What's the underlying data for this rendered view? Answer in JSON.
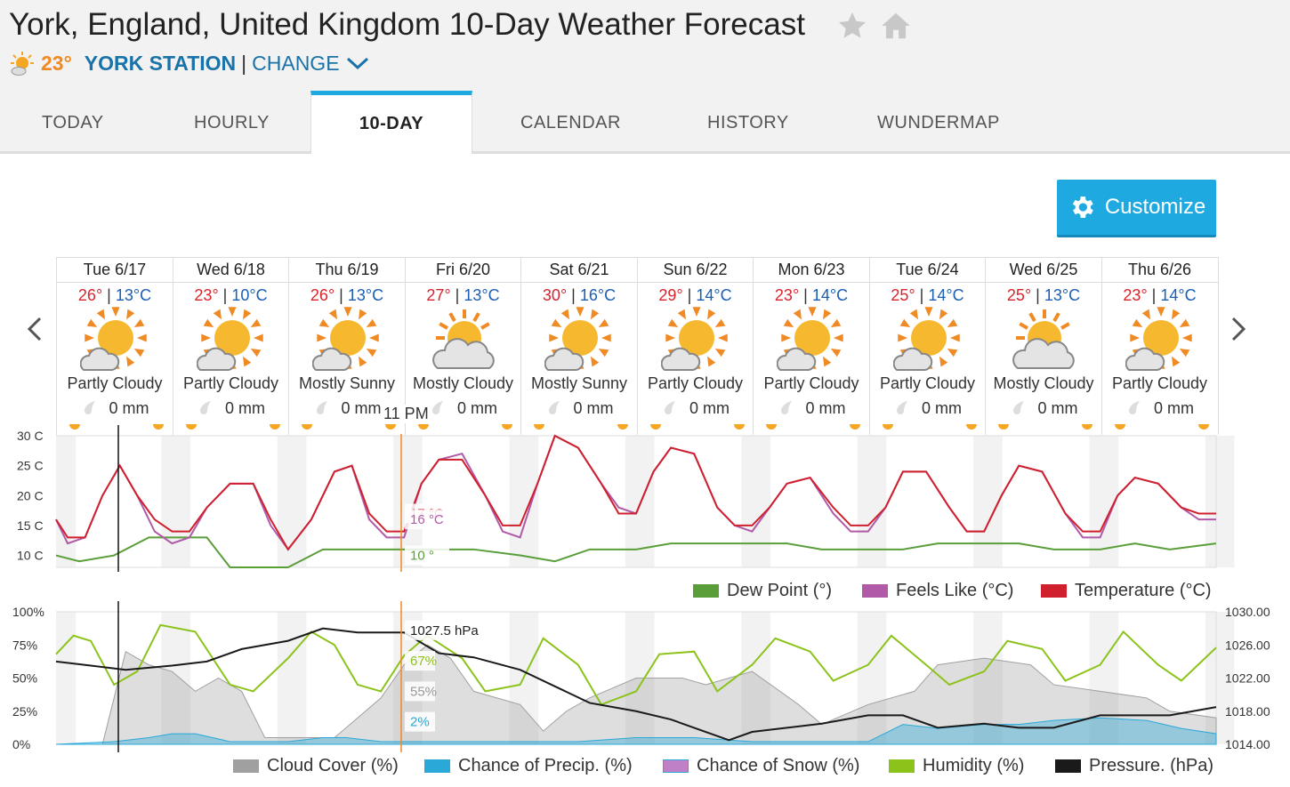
{
  "page": {
    "title": "York, England, United Kingdom 10-Day Weather Forecast",
    "current_temp": "23°",
    "station": "YORK STATION",
    "separator": "|",
    "change_label": "CHANGE"
  },
  "tabs": [
    {
      "label": "TODAY"
    },
    {
      "label": "HOURLY"
    },
    {
      "label": "10-DAY"
    },
    {
      "label": "CALENDAR"
    },
    {
      "label": "HISTORY"
    },
    {
      "label": "WUNDERMAP"
    }
  ],
  "customize_label": "Customize",
  "days": [
    {
      "date": "Tue 6/17",
      "hi": "26°",
      "lo": "13°C",
      "cond": "Partly Cloudy",
      "precip": "0 mm",
      "icon": "partly-cloudy-icon"
    },
    {
      "date": "Wed 6/18",
      "hi": "23°",
      "lo": "10°C",
      "cond": "Partly Cloudy",
      "precip": "0 mm",
      "icon": "partly-cloudy-icon"
    },
    {
      "date": "Thu 6/19",
      "hi": "26°",
      "lo": "13°C",
      "cond": "Mostly Sunny",
      "precip": "0 mm",
      "icon": "mostly-sunny-icon"
    },
    {
      "date": "Fri 6/20",
      "hi": "27°",
      "lo": "13°C",
      "cond": "Mostly Cloudy",
      "precip": "0 mm",
      "icon": "mostly-cloudy-icon"
    },
    {
      "date": "Sat 6/21",
      "hi": "30°",
      "lo": "16°C",
      "cond": "Mostly Sunny",
      "precip": "0 mm",
      "icon": "mostly-sunny-icon"
    },
    {
      "date": "Sun 6/22",
      "hi": "29°",
      "lo": "14°C",
      "cond": "Partly Cloudy",
      "precip": "0 mm",
      "icon": "partly-cloudy-icon"
    },
    {
      "date": "Mon 6/23",
      "hi": "23°",
      "lo": "14°C",
      "cond": "Partly Cloudy",
      "precip": "0 mm",
      "icon": "partly-cloudy-icon"
    },
    {
      "date": "Tue 6/24",
      "hi": "25°",
      "lo": "14°C",
      "cond": "Partly Cloudy",
      "precip": "0 mm",
      "icon": "partly-cloudy-icon"
    },
    {
      "date": "Wed 6/25",
      "hi": "25°",
      "lo": "13°C",
      "cond": "Mostly Cloudy",
      "precip": "0 mm",
      "icon": "mostly-cloudy-icon"
    },
    {
      "date": "Thu 6/26",
      "hi": "23°",
      "lo": "14°C",
      "cond": "Partly Cloudy",
      "precip": "0 mm",
      "icon": "partly-cloudy-icon"
    }
  ],
  "hover_time": "11 PM",
  "colors": {
    "temperature": "#d0202e",
    "feels_like": "#b05aa8",
    "dew_point": "#5a9e3a",
    "cloud_cover": "#a0a0a0",
    "precip": "#2aa8d8",
    "snow": "#c080c8",
    "humidity": "#8cc31b",
    "pressure": "#1a1a1a",
    "accent": "#1fa9e1"
  },
  "chart_data": [
    {
      "type": "line",
      "ylim": [
        8,
        30
      ],
      "ytick_labels": [
        "30 C",
        "25 C",
        "20 C",
        "15 C",
        "10 C"
      ],
      "yticks": [
        30,
        25,
        20,
        15,
        10
      ],
      "x_days": 10,
      "legend_position": "bottom-right",
      "tooltip": {
        "temperature": "17 °C",
        "feels_like": "16 °C",
        "dew_point": "10 °"
      },
      "series": [
        {
          "name": "Dew Point (°)",
          "key": "dew_point",
          "x": [
            0,
            0.2,
            0.5,
            0.8,
            1,
            1.3,
            1.5,
            1.8,
            2,
            2.3,
            2.6,
            3,
            3.3,
            3.6,
            4,
            4.3,
            4.6,
            5,
            5.3,
            5.6,
            6,
            6.3,
            6.6,
            7,
            7.3,
            7.6,
            8,
            8.3,
            8.6,
            9,
            9.3,
            9.6,
            10
          ],
          "values": [
            10,
            9,
            10,
            13,
            13,
            13,
            8,
            8,
            8,
            11,
            11,
            11,
            11,
            11,
            10,
            9,
            11,
            11,
            12,
            12,
            12,
            12,
            11,
            11,
            11,
            12,
            12,
            12,
            11,
            11,
            12,
            11,
            12
          ]
        },
        {
          "name": "Feels Like (°C)",
          "key": "feels_like",
          "x": [
            0,
            0.1,
            0.25,
            0.4,
            0.55,
            0.7,
            0.85,
            1,
            1.15,
            1.3,
            1.5,
            1.7,
            1.85,
            2,
            2.2,
            2.4,
            2.55,
            2.7,
            2.85,
            3,
            3.15,
            3.3,
            3.5,
            3.7,
            3.85,
            4,
            4.15,
            4.3,
            4.5,
            4.7,
            4.85,
            5,
            5.15,
            5.3,
            5.5,
            5.7,
            5.85,
            6,
            6.15,
            6.3,
            6.5,
            6.7,
            6.85,
            7,
            7.15,
            7.3,
            7.5,
            7.7,
            7.85,
            8,
            8.15,
            8.3,
            8.5,
            8.7,
            8.85,
            9,
            9.15,
            9.3,
            9.5,
            9.7,
            9.85,
            10
          ],
          "values": [
            16,
            12,
            13,
            20,
            25,
            20,
            14,
            12,
            13,
            18,
            22,
            22,
            15,
            11,
            16,
            24,
            25,
            16,
            13,
            13,
            22,
            26,
            27,
            20,
            14,
            13,
            22,
            30,
            28,
            22,
            18,
            17,
            24,
            28,
            27,
            18,
            15,
            14,
            18,
            22,
            23,
            17,
            14,
            14,
            18,
            24,
            24,
            18,
            14,
            14,
            20,
            25,
            24,
            17,
            13,
            13,
            20,
            23,
            22,
            18,
            16,
            16
          ]
        },
        {
          "name": "Temperature (°C)",
          "key": "temperature",
          "x": [
            0,
            0.1,
            0.25,
            0.4,
            0.55,
            0.7,
            0.85,
            1,
            1.15,
            1.3,
            1.5,
            1.7,
            1.85,
            2,
            2.2,
            2.4,
            2.55,
            2.7,
            2.85,
            3,
            3.15,
            3.3,
            3.5,
            3.7,
            3.85,
            4,
            4.15,
            4.3,
            4.5,
            4.7,
            4.85,
            5,
            5.15,
            5.3,
            5.5,
            5.7,
            5.85,
            6,
            6.15,
            6.3,
            6.5,
            6.7,
            6.85,
            7,
            7.15,
            7.3,
            7.5,
            7.7,
            7.85,
            8,
            8.15,
            8.3,
            8.5,
            8.7,
            8.85,
            9,
            9.15,
            9.3,
            9.5,
            9.7,
            9.85,
            10
          ],
          "values": [
            16,
            13,
            13,
            20,
            25,
            20,
            16,
            14,
            14,
            18,
            22,
            22,
            16,
            11,
            16,
            24,
            25,
            17,
            14,
            14,
            22,
            26,
            26,
            20,
            15,
            15,
            22,
            30,
            28,
            22,
            17,
            17,
            24,
            28,
            27,
            18,
            15,
            15,
            18,
            22,
            23,
            18,
            15,
            15,
            18,
            24,
            24,
            18,
            14,
            14,
            20,
            25,
            24,
            17,
            14,
            14,
            20,
            23,
            22,
            18,
            17,
            17
          ]
        }
      ]
    },
    {
      "type": "area",
      "ylim": [
        0,
        100
      ],
      "ytick_labels": [
        "100%",
        "75%",
        "50%",
        "25%",
        "0%"
      ],
      "yticks": [
        100,
        75,
        50,
        25,
        0
      ],
      "y2lim": [
        1014,
        1030
      ],
      "y2tick_labels": [
        "1030.00",
        "1026.00",
        "1022.00",
        "1018.00",
        "1014.00"
      ],
      "y2ticks": [
        1030,
        1026,
        1022,
        1018,
        1014
      ],
      "legend_position": "bottom",
      "tooltip": {
        "pressure": "1027.5 hPa",
        "humidity": "67%",
        "cloud_cover": "55%",
        "precip": "2%"
      },
      "series": [
        {
          "name": "Cloud Cover (%)",
          "key": "cloud_cover",
          "x": [
            0,
            0.4,
            0.6,
            0.8,
            1,
            1.2,
            1.4,
            1.6,
            1.8,
            2,
            2.4,
            2.6,
            2.8,
            3,
            3.2,
            3.4,
            3.6,
            3.8,
            4,
            4.2,
            4.4,
            4.6,
            5,
            5.4,
            5.6,
            6,
            6.4,
            6.6,
            7,
            7.4,
            7.6,
            8,
            8.4,
            8.6,
            9,
            9.4,
            9.6,
            10
          ],
          "values": [
            0,
            0,
            70,
            60,
            55,
            40,
            50,
            40,
            5,
            5,
            5,
            20,
            35,
            60,
            75,
            65,
            40,
            35,
            30,
            10,
            25,
            35,
            50,
            50,
            45,
            55,
            30,
            15,
            30,
            40,
            60,
            65,
            60,
            45,
            40,
            35,
            25,
            20
          ]
        },
        {
          "name": "Chance of Precip. (%)",
          "key": "precip",
          "x": [
            0,
            0.5,
            0.8,
            1,
            1.2,
            1.5,
            2,
            2.3,
            2.5,
            2.8,
            3,
            3.5,
            4,
            4.5,
            5,
            5.5,
            6,
            6.5,
            7,
            7.3,
            7.6,
            8,
            8.3,
            8.6,
            9,
            9.4,
            9.7,
            10
          ],
          "values": [
            0,
            2,
            5,
            8,
            8,
            2,
            2,
            5,
            5,
            2,
            2,
            2,
            2,
            2,
            5,
            5,
            2,
            2,
            2,
            15,
            12,
            15,
            15,
            18,
            20,
            18,
            12,
            8
          ]
        },
        {
          "name": "Chance of Snow (%)",
          "key": "snow",
          "x": [
            0,
            10
          ],
          "values": [
            0,
            0
          ]
        },
        {
          "name": "Humidity (%)",
          "key": "humidity",
          "x": [
            0,
            0.15,
            0.3,
            0.5,
            0.7,
            0.9,
            1.2,
            1.5,
            1.7,
            2,
            2.2,
            2.4,
            2.6,
            2.8,
            3,
            3.2,
            3.5,
            3.7,
            4,
            4.2,
            4.5,
            4.7,
            5,
            5.2,
            5.5,
            5.7,
            6,
            6.2,
            6.5,
            6.7,
            7,
            7.2,
            7.5,
            7.7,
            8,
            8.2,
            8.5,
            8.7,
            9,
            9.2,
            9.5,
            9.7,
            10
          ],
          "values": [
            68,
            82,
            78,
            45,
            55,
            90,
            85,
            45,
            40,
            65,
            85,
            75,
            45,
            40,
            67,
            82,
            65,
            40,
            45,
            80,
            60,
            30,
            40,
            68,
            70,
            40,
            60,
            80,
            70,
            48,
            60,
            82,
            60,
            45,
            55,
            78,
            72,
            48,
            60,
            85,
            60,
            48,
            73
          ]
        },
        {
          "name": "Pressure. (hPa)",
          "key": "pressure",
          "x": [
            0,
            0.3,
            0.6,
            1,
            1.3,
            1.6,
            2,
            2.3,
            2.6,
            3,
            3.3,
            3.6,
            4,
            4.3,
            4.6,
            5,
            5.3,
            5.6,
            5.8,
            6,
            6.3,
            6.6,
            7,
            7.3,
            7.6,
            8,
            8.3,
            8.6,
            9,
            9.3,
            9.6,
            10
          ],
          "values": [
            1024,
            1023.5,
            1023,
            1023.5,
            1024,
            1025.5,
            1026.5,
            1028,
            1027.5,
            1027.5,
            1025,
            1024.5,
            1023,
            1021,
            1019,
            1018,
            1017,
            1015.5,
            1014.5,
            1015.5,
            1016,
            1016.5,
            1017.5,
            1017.5,
            1016,
            1016.5,
            1016,
            1016,
            1017.5,
            1017.5,
            1017.5,
            1018.5
          ]
        }
      ]
    }
  ]
}
